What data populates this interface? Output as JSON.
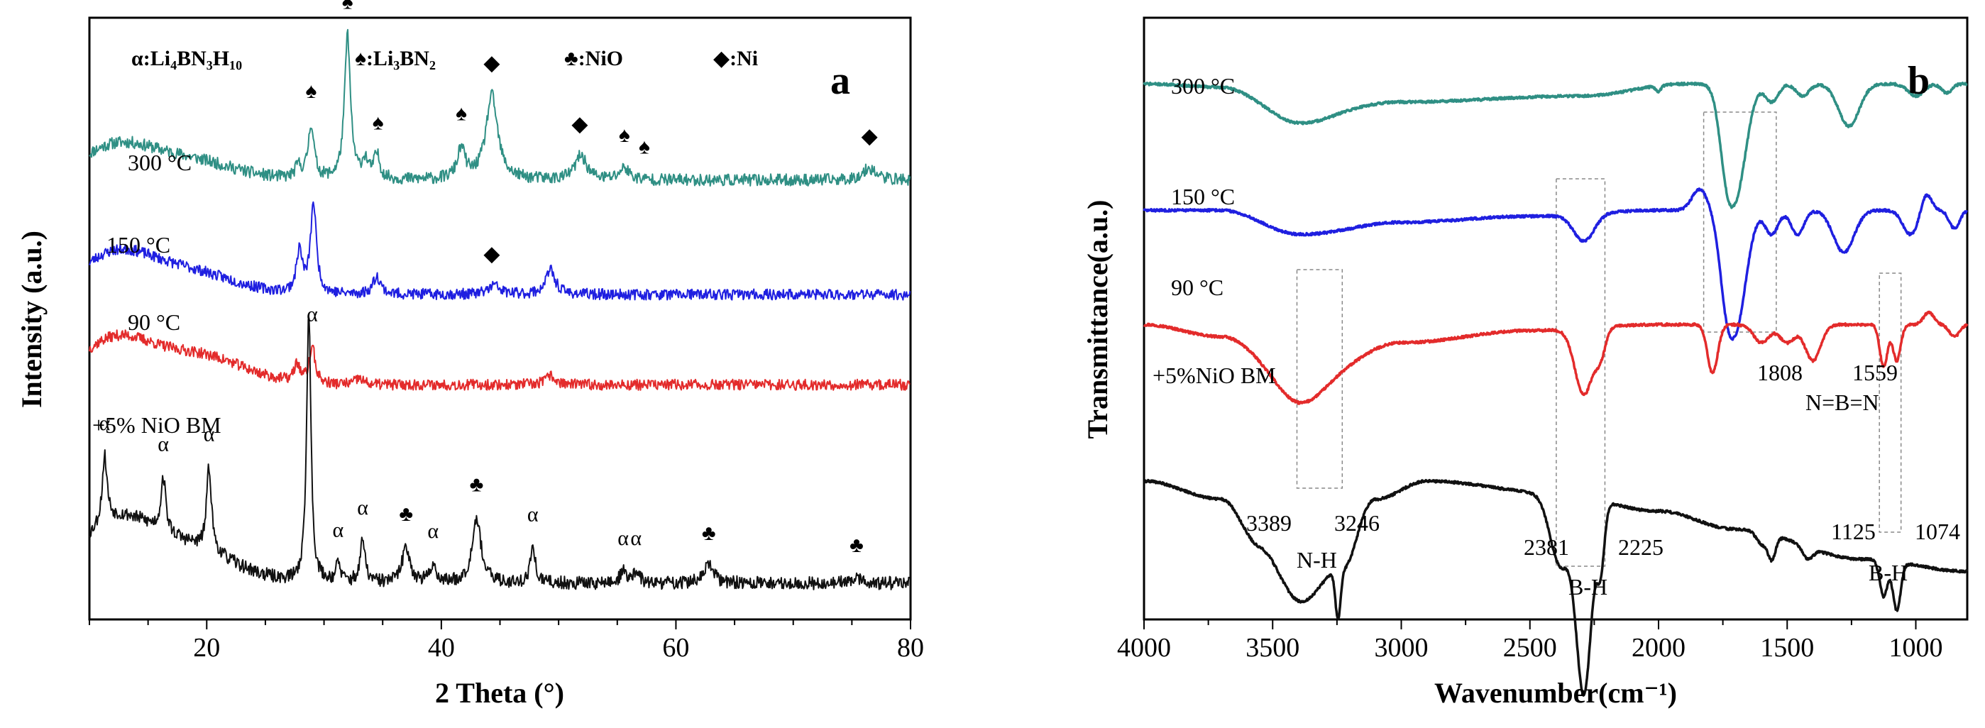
{
  "chart_data": [
    {
      "panel": "a",
      "type": "line",
      "xlabel": "2 Theta (°)",
      "ylabel": "Intensity (a.u.)",
      "xlim": [
        10,
        80
      ],
      "x_ticks": [
        "20",
        "40",
        "60",
        "80"
      ],
      "y_ticks": "none",
      "legend": {
        "placement": "top",
        "entries": [
          {
            "symbol": "α",
            "phase": "Li4BN3H10",
            "text": "α:Li₄BN₃H₁₀"
          },
          {
            "symbol": "♠",
            "phase": "Li3BN2",
            "text": "♠:Li₃BN₂"
          },
          {
            "symbol": "♣",
            "phase": "NiO",
            "text": "♣:NiO"
          },
          {
            "symbol": "◆",
            "phase": "Ni",
            "text": "◆:Ni"
          }
        ]
      },
      "series": [
        {
          "name": "300 °C",
          "color": "#2f8f84",
          "offset": 0.73,
          "noise": 0.01,
          "seed": 11,
          "humps": [
            [
              12,
              0.05,
              3
            ],
            [
              18,
              0.035,
              4
            ]
          ],
          "peaks": [
            [
              27.8,
              0.02,
              0.3
            ],
            [
              28.9,
              0.09,
              0.3
            ],
            [
              32.0,
              0.24,
              0.3
            ],
            [
              33.5,
              0.03,
              0.3
            ],
            [
              34.5,
              0.04,
              0.3
            ],
            [
              41.7,
              0.05,
              0.4
            ],
            [
              44.3,
              0.14,
              0.6
            ],
            [
              51.9,
              0.04,
              0.6
            ],
            [
              55.6,
              0.02,
              0.5
            ],
            [
              76.5,
              0.02,
              0.7
            ]
          ]
        },
        {
          "name": "150 °C",
          "color": "#1f1fe0",
          "offset": 0.54,
          "noise": 0.009,
          "seed": 23,
          "humps": [
            [
              12,
              0.06,
              3
            ],
            [
              18,
              0.04,
              4
            ]
          ],
          "peaks": [
            [
              27.9,
              0.07,
              0.3
            ],
            [
              29.1,
              0.15,
              0.3
            ],
            [
              34.5,
              0.03,
              0.4
            ],
            [
              44.5,
              0.015,
              0.6
            ],
            [
              49.3,
              0.04,
              0.5
            ]
          ]
        },
        {
          "name": "90 °C",
          "color": "#e32b2b",
          "offset": 0.39,
          "noise": 0.009,
          "seed": 37,
          "humps": [
            [
              12,
              0.07,
              3
            ],
            [
              19,
              0.05,
              4
            ]
          ],
          "peaks": [
            [
              27.7,
              0.03,
              0.3
            ],
            [
              29.0,
              0.06,
              0.3
            ],
            [
              33.0,
              0.01,
              0.4
            ],
            [
              49.3,
              0.015,
              0.5
            ]
          ]
        },
        {
          "name": "+5% NiO BM",
          "color": "#111111",
          "offset": 0.06,
          "noise": 0.011,
          "seed": 53,
          "humps": [
            [
              12,
              0.09,
              3
            ],
            [
              18,
              0.06,
              4
            ]
          ],
          "peaks": [
            [
              11.3,
              0.11,
              0.25
            ],
            [
              16.3,
              0.09,
              0.25
            ],
            [
              20.2,
              0.14,
              0.25
            ],
            [
              28.7,
              0.45,
              0.22
            ],
            [
              31.2,
              0.03,
              0.25
            ],
            [
              33.3,
              0.07,
              0.25
            ],
            [
              37.0,
              0.06,
              0.4
            ],
            [
              39.3,
              0.03,
              0.3
            ],
            [
              43.0,
              0.11,
              0.45
            ],
            [
              47.8,
              0.06,
              0.25
            ],
            [
              55.5,
              0.02,
              0.3
            ],
            [
              56.6,
              0.02,
              0.3
            ],
            [
              62.8,
              0.03,
              0.5
            ],
            [
              75.4,
              0.01,
              0.5
            ]
          ]
        }
      ],
      "peak_markers": [
        {
          "symbol": "♠",
          "x": 28.9,
          "series": "300 °C"
        },
        {
          "symbol": "♠",
          "x": 32.0,
          "series": "300 °C"
        },
        {
          "symbol": "♠",
          "x": 34.6,
          "series": "300 °C"
        },
        {
          "symbol": "♠",
          "x": 41.7,
          "series": "300 °C"
        },
        {
          "symbol": "◆",
          "x": 44.3,
          "series": "300 °C"
        },
        {
          "symbol": "◆",
          "x": 51.8,
          "series": "300 °C"
        },
        {
          "symbol": "♠",
          "x": 55.6,
          "series": "300 °C"
        },
        {
          "symbol": "♠",
          "x": 57.3,
          "series": "300 °C"
        },
        {
          "symbol": "◆",
          "x": 76.5,
          "series": "300 °C"
        },
        {
          "symbol": "◆",
          "x": 44.3,
          "series": "150 °C"
        },
        {
          "symbol": "α",
          "x": 29.0,
          "series": "90 °C"
        },
        {
          "symbol": "α",
          "x": 11.3,
          "series": "+5% NiO BM"
        },
        {
          "symbol": "α",
          "x": 16.3,
          "series": "+5% NiO BM"
        },
        {
          "symbol": "α",
          "x": 20.2,
          "series": "+5% NiO BM"
        },
        {
          "symbol": "α",
          "x": 31.2,
          "series": "+5% NiO BM"
        },
        {
          "symbol": "α",
          "x": 33.3,
          "series": "+5% NiO BM"
        },
        {
          "symbol": "♣",
          "x": 37.0,
          "series": "+5% NiO BM"
        },
        {
          "symbol": "α",
          "x": 39.3,
          "series": "+5% NiO BM"
        },
        {
          "symbol": "♣",
          "x": 43.0,
          "series": "+5% NiO BM"
        },
        {
          "symbol": "α",
          "x": 47.8,
          "series": "+5% NiO BM"
        },
        {
          "symbol": "α",
          "x": 55.5,
          "series": "+5% NiO BM"
        },
        {
          "symbol": "α",
          "x": 56.6,
          "series": "+5% NiO BM"
        },
        {
          "symbol": "♣",
          "x": 62.8,
          "series": "+5% NiO BM"
        },
        {
          "symbol": "♣",
          "x": 75.4,
          "series": "+5% NiO BM"
        }
      ]
    },
    {
      "panel": "b",
      "type": "line",
      "xlabel": "Wavenumber(cm⁻¹)",
      "ylabel": "Transmittance(a.u.)",
      "xlim": [
        4000,
        800
      ],
      "x_reversed": true,
      "x_ticks": [
        "4000",
        "3500",
        "3000",
        "2500",
        "2000",
        "1500",
        "1000"
      ],
      "y_ticks": "none",
      "series": [
        {
          "name": "300 °C",
          "color": "#2f8f84",
          "offset": 0.89,
          "seed": 71,
          "slope": [
            [
              4000,
              0.0
            ],
            [
              3700,
              -0.005
            ],
            [
              3390,
              -0.045
            ],
            [
              3000,
              -0.03
            ],
            [
              2300,
              -0.02
            ],
            [
              1900,
              0.0
            ]
          ],
          "bands": [
            [
              3390,
              -0.02,
              120
            ],
            [
              2000,
              -0.01,
              10
            ],
            [
              1740,
              -0.06,
              25
            ],
            [
              1700,
              -0.18,
              40
            ],
            [
              1560,
              -0.03,
              25
            ],
            [
              1440,
              -0.02,
              25
            ],
            [
              1260,
              -0.07,
              40
            ],
            [
              1000,
              -0.02,
              30
            ],
            [
              880,
              -0.015,
              20
            ]
          ]
        },
        {
          "name": "150 °C",
          "color": "#1f1fe0",
          "offset": 0.68,
          "seed": 83,
          "slope": [
            [
              4000,
              0.0
            ],
            [
              3700,
              0.0
            ],
            [
              3390,
              -0.04
            ],
            [
              3000,
              -0.02
            ],
            [
              2500,
              -0.01
            ],
            [
              2000,
              0.0
            ]
          ],
          "bands": [
            [
              2290,
              -0.045,
              40
            ],
            [
              1840,
              0.035,
              30
            ],
            [
              1740,
              -0.06,
              25
            ],
            [
              1700,
              -0.19,
              40
            ],
            [
              1560,
              -0.04,
              25
            ],
            [
              1460,
              -0.04,
              25
            ],
            [
              1280,
              -0.07,
              40
            ],
            [
              1020,
              -0.04,
              30
            ],
            [
              960,
              0.03,
              20
            ],
            [
              850,
              -0.03,
              20
            ]
          ]
        },
        {
          "name": "90 °C",
          "color": "#e32b2b",
          "offset": 0.49,
          "seed": 97,
          "slope": [
            [
              4000,
              0.0
            ],
            [
              3700,
              -0.02
            ],
            [
              3390,
              -0.1
            ],
            [
              3000,
              -0.03
            ],
            [
              2500,
              -0.01
            ],
            [
              2000,
              0.0
            ]
          ],
          "bands": [
            [
              3390,
              -0.03,
              80
            ],
            [
              2290,
              -0.11,
              35
            ],
            [
              2225,
              -0.04,
              20
            ],
            [
              1790,
              -0.08,
              20
            ],
            [
              1600,
              -0.03,
              30
            ],
            [
              1500,
              -0.03,
              30
            ],
            [
              1400,
              -0.06,
              30
            ],
            [
              1125,
              -0.07,
              15
            ],
            [
              1074,
              -0.06,
              15
            ],
            [
              950,
              0.02,
              20
            ],
            [
              850,
              -0.02,
              20
            ]
          ]
        },
        {
          "name": "+5%NiO BM",
          "color": "#111111",
          "offset": 0.08,
          "seed": 109,
          "slope": [
            [
              4000,
              0.15
            ],
            [
              3700,
              0.12
            ],
            [
              3550,
              0.05
            ],
            [
              3389,
              0.0
            ],
            [
              3250,
              0.02
            ],
            [
              3100,
              0.12
            ],
            [
              2900,
              0.15
            ],
            [
              2400,
              0.13
            ],
            [
              2000,
              0.1
            ],
            [
              1700,
              0.07
            ],
            [
              1200,
              0.02
            ],
            [
              800,
              0.0
            ]
          ],
          "bands": [
            [
              3389,
              -0.05,
              90
            ],
            [
              3246,
              -0.08,
              10
            ],
            [
              3200,
              -0.02,
              30
            ],
            [
              2381,
              -0.12,
              40
            ],
            [
              2290,
              -0.32,
              30
            ],
            [
              2225,
              -0.1,
              15
            ],
            [
              1600,
              -0.02,
              20
            ],
            [
              1560,
              -0.04,
              15
            ],
            [
              1420,
              -0.02,
              20
            ],
            [
              1125,
              -0.06,
              15
            ],
            [
              1074,
              -0.08,
              15
            ]
          ]
        }
      ],
      "annotations": {
        "nh_label": "N-H",
        "bh_label_1": "B-H",
        "bh_label_2": "B-H",
        "nbn_label": "N=B=N",
        "wn_3389": "3389",
        "wn_3246": "3246",
        "wn_2381": "2381",
        "wn_2225": "2225",
        "wn_1808": "1808",
        "wn_1559": "1559",
        "wn_1125": "1125",
        "wn_1074": "1074"
      },
      "highlight_regions": [
        {
          "label": "N-H",
          "x_from": 3389,
          "x_to": 3246
        },
        {
          "label": "B-H",
          "x_from": 2381,
          "x_to": 2225
        },
        {
          "label": "N=B=N",
          "x_from": 1808,
          "x_to": 1559
        },
        {
          "label": "B-H",
          "x_from": 1125,
          "x_to": 1074
        }
      ]
    }
  ],
  "panels": {
    "a": {
      "letter": "a"
    },
    "b": {
      "letter": "b"
    }
  }
}
